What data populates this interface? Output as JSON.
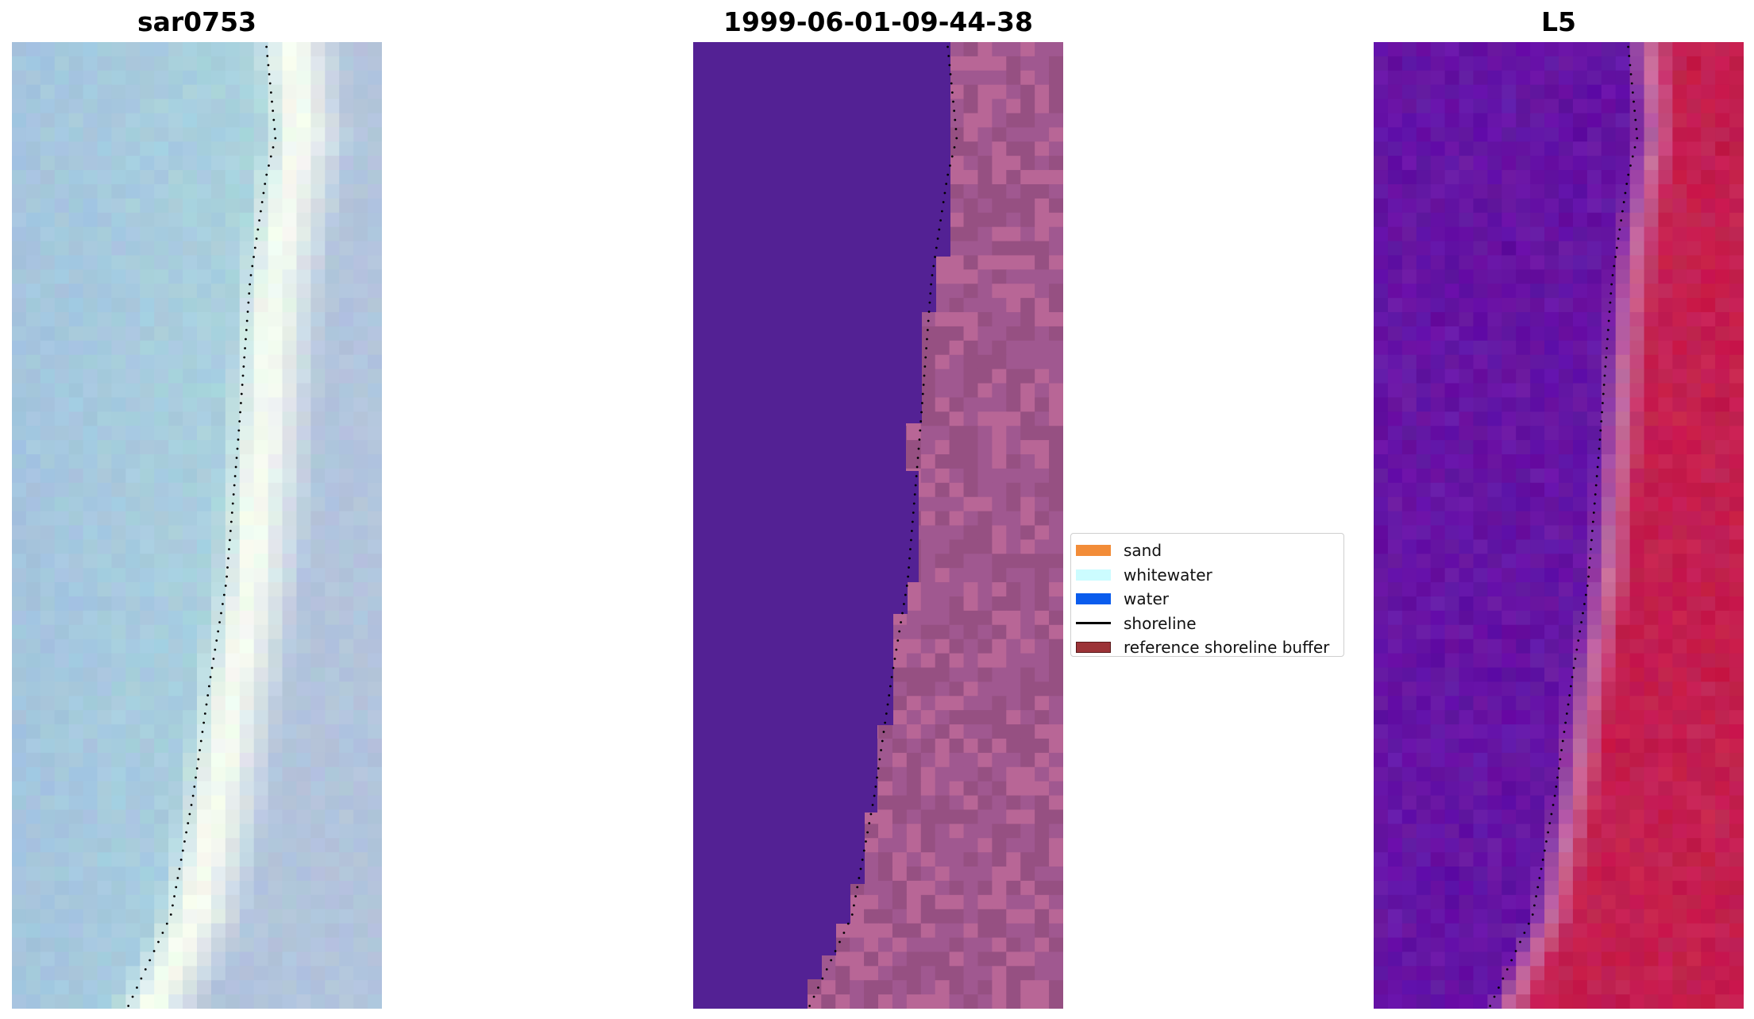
{
  "panels": [
    {
      "title": "sar0753",
      "kind": "rgb-image"
    },
    {
      "title": "1999-06-01-09-44-38",
      "kind": "classified-image"
    },
    {
      "title": "L5",
      "kind": "index-image"
    }
  ],
  "legend": {
    "items": [
      {
        "label": "sand",
        "type": "patch",
        "color": "#f28c38"
      },
      {
        "label": "whitewater",
        "type": "patch",
        "color": "#ccfcff"
      },
      {
        "label": "water",
        "type": "patch",
        "color": "#0a5ced"
      },
      {
        "label": "shoreline",
        "type": "line",
        "color": "#000000"
      },
      {
        "label": "reference shoreline buffer",
        "type": "patch",
        "color": "#9c3337"
      }
    ]
  },
  "colors": {
    "water_class": "#532194",
    "buffer_class": "#a05890",
    "index_low": "#5b0ea6",
    "index_high": "#c20e45",
    "shoreline_dots": "#000000"
  }
}
